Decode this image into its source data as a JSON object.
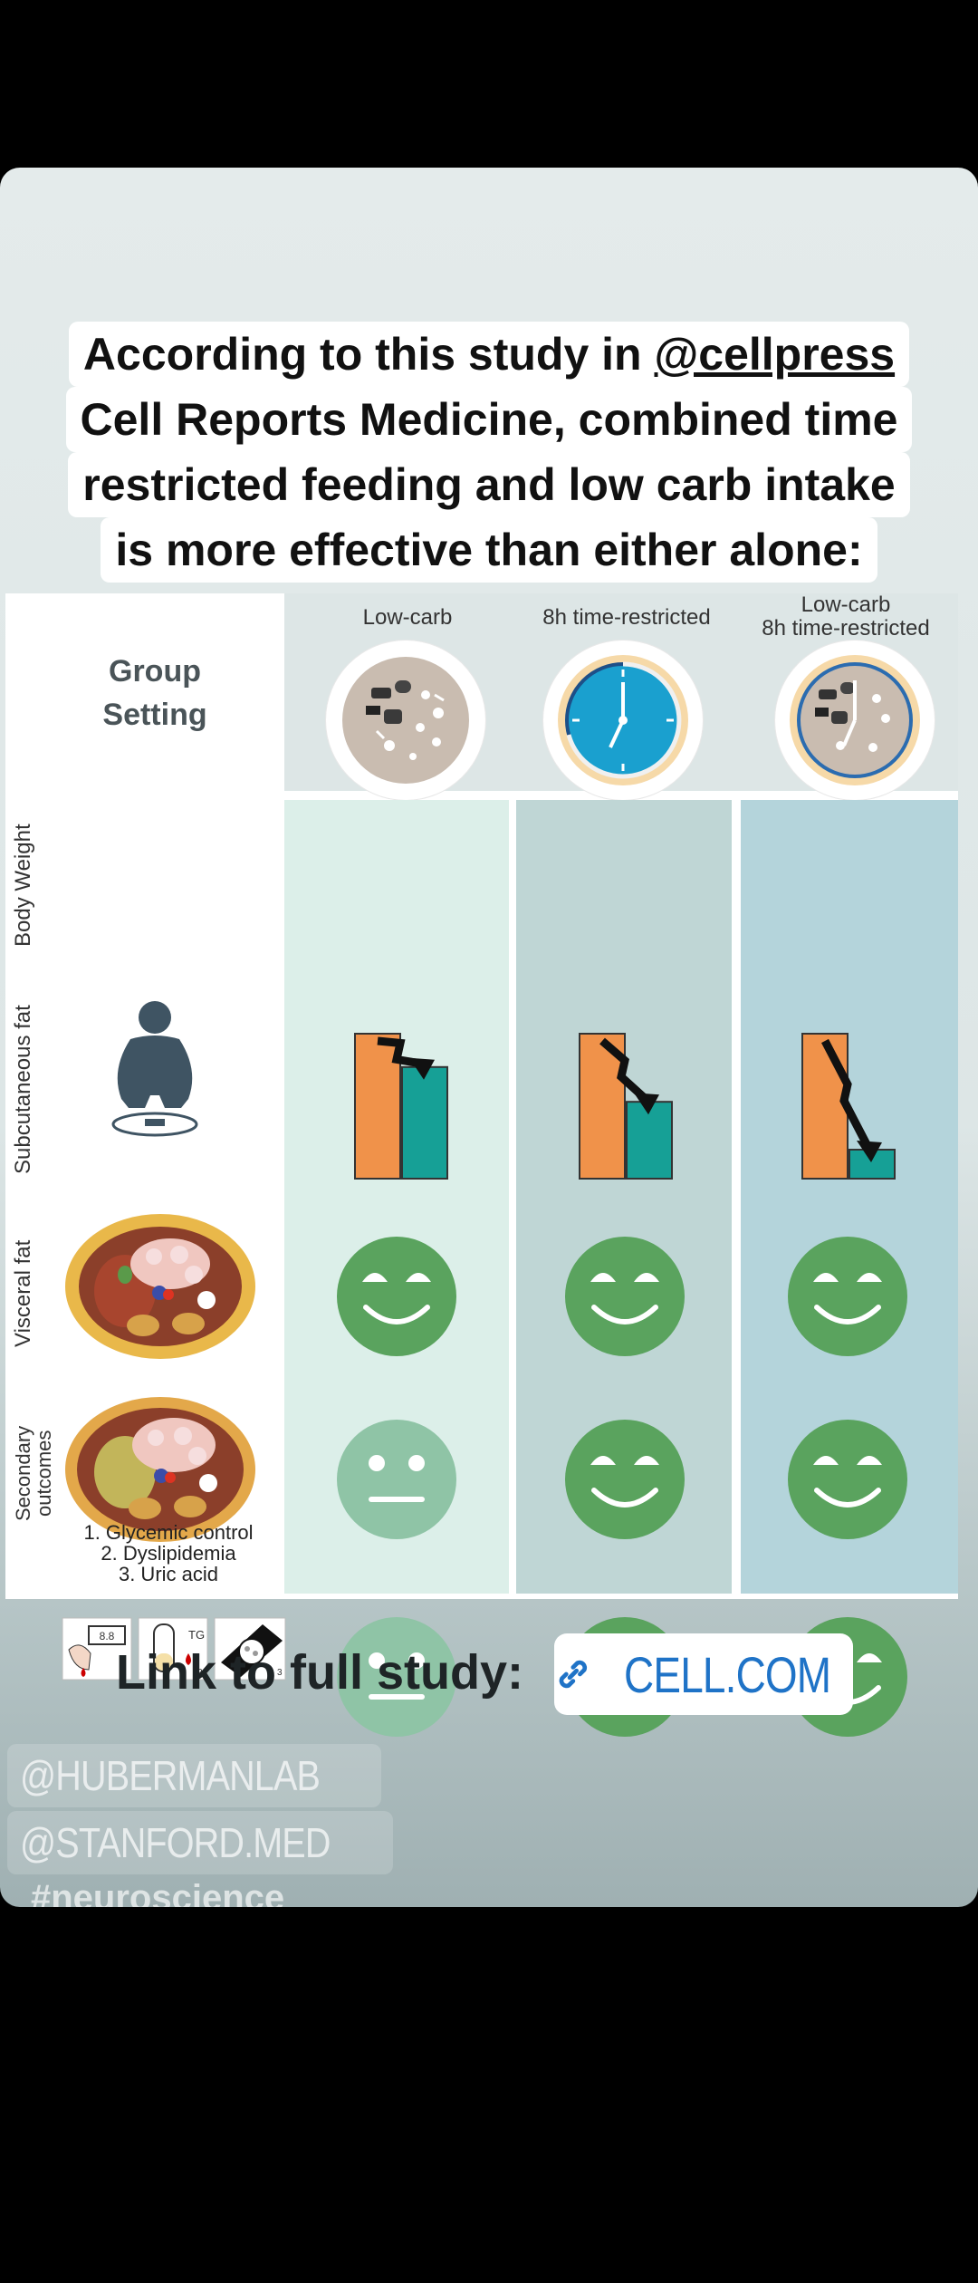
{
  "caption": {
    "line1_prefix": "According to this study in ",
    "line1_mention": "@cellpress",
    "line2": "Cell Reports Medicine, combined time",
    "line3": "restricted feeding and low carb intake",
    "line4": "is more effective than either alone:"
  },
  "figure": {
    "group_setting": [
      "Group",
      "Setting"
    ],
    "columns": [
      {
        "title_lines": [
          "Low-carb"
        ],
        "plate_icon": "food-plate-icon"
      },
      {
        "title_lines": [
          "8h time-restricted"
        ],
        "plate_icon": "clock-icon"
      },
      {
        "title_lines": [
          "Low-carb",
          "8h time-restricted"
        ],
        "plate_icon": "food-clock-plate-icon"
      }
    ],
    "rows": [
      {
        "label": "Body Weight",
        "icon": "body-on-scale-icon"
      },
      {
        "label": "Subcutaneous fat",
        "icon": "abdomen-scan-icon"
      },
      {
        "label": "Visceral fat",
        "icon": "abdomen-scan-icon"
      },
      {
        "label_lines": [
          "Secondary",
          "outcomes"
        ],
        "icon": "lab-tests-icon"
      }
    ],
    "secondary_legend": [
      "1. Glycemic control",
      "2. Dyslipidemia",
      "3. Uric acid"
    ],
    "test_icon_labels": {
      "meter": "8.8",
      "tube": "TG"
    },
    "results": {
      "body_weight_remaining_fraction": [
        0.77,
        0.53,
        0.2
      ],
      "subcutaneous_fat": [
        "happy",
        "happy",
        "happy"
      ],
      "visceral_fat": [
        "neutral",
        "happy",
        "happy"
      ],
      "secondary_outcomes": [
        "neutral",
        "happy",
        "happy"
      ]
    },
    "colors": {
      "col1_bg": "#dcefe9",
      "col2_bg": "#bfd6d5",
      "col3_bg": "#b4d4db",
      "bar_before": "#f0924a",
      "bar_after": "#16a096",
      "happy_face": "#5aa35e",
      "neutral_face": "#8fc4a6"
    }
  },
  "link": {
    "label": "Link to full study:",
    "sticker_text": "CELL.COM",
    "icon": "link-icon"
  },
  "tags": [
    "@HUBERMANLAB",
    "@STANFORD.MED"
  ],
  "hashtag": "#neuroscience"
}
